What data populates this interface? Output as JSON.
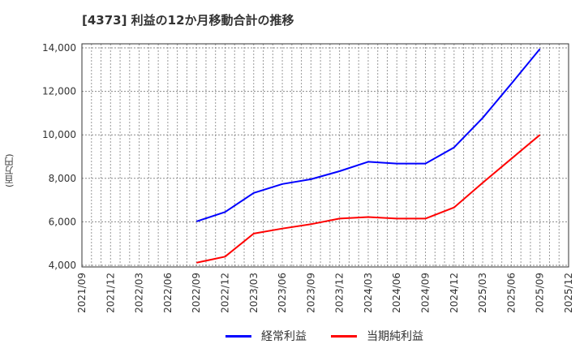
{
  "title": "[4373]  利益の12か月移動合計の推移",
  "y_axis_label": "(百万円)",
  "legend": [
    {
      "label": "経常利益",
      "color": "#0000ff"
    },
    {
      "label": "当期純利益",
      "color": "#ff0000"
    }
  ],
  "chart_data": {
    "type": "line",
    "title": "[4373]  利益の12か月移動合計の推移",
    "xlabel": "",
    "ylabel": "(百万円)",
    "ylim": [
      4000,
      14000
    ],
    "yticks": [
      4000,
      6000,
      8000,
      10000,
      12000,
      14000
    ],
    "ytick_labels": [
      "4,000",
      "6,000",
      "8,000",
      "10,000",
      "12,000",
      "14,000"
    ],
    "x_ticks": [
      "2021/09",
      "2021/12",
      "2022/03",
      "2022/06",
      "2022/09",
      "2022/12",
      "2023/03",
      "2023/06",
      "2023/09",
      "2023/12",
      "2024/03",
      "2024/06",
      "2024/09",
      "2024/12",
      "2025/03",
      "2025/06",
      "2025/09",
      "2025/12"
    ],
    "categories": [
      "2022/09",
      "2022/12",
      "2023/03",
      "2023/06",
      "2023/09",
      "2023/12",
      "2024/03",
      "2024/06",
      "2024/09",
      "2024/12",
      "2025/03",
      "2025/06",
      "2025/09"
    ],
    "series": [
      {
        "name": "経常利益",
        "color": "#0000ff",
        "values": [
          6020,
          6450,
          7330,
          7740,
          7960,
          8330,
          8760,
          8680,
          8680,
          9420,
          10780,
          12350,
          13950
        ]
      },
      {
        "name": "当期純利益",
        "color": "#ff0000",
        "values": [
          4120,
          4400,
          5460,
          5690,
          5890,
          6150,
          6220,
          6150,
          6150,
          6660,
          7800,
          8900,
          10000
        ]
      }
    ],
    "grid": true,
    "legend_position": "bottom"
  }
}
